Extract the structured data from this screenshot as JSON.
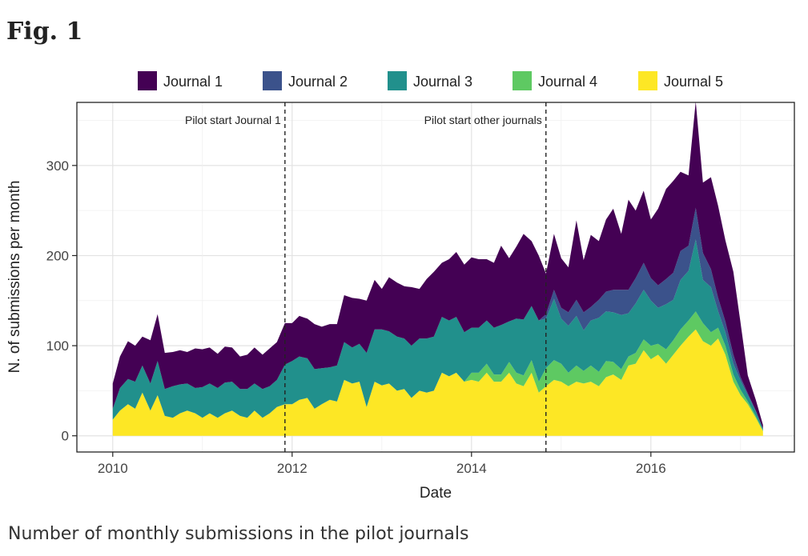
{
  "figure": {
    "label": "Fig. 1",
    "caption": "Number of monthly submissions in the pilot journals"
  },
  "chart_data": {
    "type": "area",
    "stacked": true,
    "title": "",
    "xlabel": "Date",
    "ylabel": "N. of submissions per month",
    "xlim": [
      2009.6,
      2017.6
    ],
    "ylim": [
      -18,
      370
    ],
    "xticks": [
      2010,
      2012,
      2014,
      2016
    ],
    "xtick_labels": [
      "2010",
      "2012",
      "2014",
      "2016"
    ],
    "yticks": [
      0,
      100,
      200,
      300
    ],
    "ytick_labels": [
      "0",
      "100",
      "200",
      "300"
    ],
    "grid": true,
    "legend_position": "top",
    "annotations": [
      {
        "x": 2011.92,
        "label": "Pilot start Journal 1"
      },
      {
        "x": 2014.83,
        "label": "Pilot start other journals"
      }
    ],
    "x": [
      2010.0,
      2010.08,
      2010.17,
      2010.25,
      2010.33,
      2010.42,
      2010.5,
      2010.58,
      2010.67,
      2010.75,
      2010.83,
      2010.92,
      2011.0,
      2011.08,
      2011.17,
      2011.25,
      2011.33,
      2011.42,
      2011.5,
      2011.58,
      2011.67,
      2011.75,
      2011.83,
      2011.92,
      2012.0,
      2012.08,
      2012.17,
      2012.25,
      2012.33,
      2012.42,
      2012.5,
      2012.58,
      2012.67,
      2012.75,
      2012.83,
      2012.92,
      2013.0,
      2013.08,
      2013.17,
      2013.25,
      2013.33,
      2013.42,
      2013.5,
      2013.58,
      2013.67,
      2013.75,
      2013.83,
      2013.92,
      2014.0,
      2014.08,
      2014.17,
      2014.25,
      2014.33,
      2014.42,
      2014.5,
      2014.58,
      2014.67,
      2014.75,
      2014.83,
      2014.92,
      2015.0,
      2015.08,
      2015.17,
      2015.25,
      2015.33,
      2015.42,
      2015.5,
      2015.58,
      2015.67,
      2015.75,
      2015.83,
      2015.92,
      2016.0,
      2016.08,
      2016.17,
      2016.25,
      2016.33,
      2016.42,
      2016.5,
      2016.58,
      2016.67,
      2016.75,
      2016.83,
      2016.92,
      2017.0,
      2017.08,
      2017.17,
      2017.25
    ],
    "series": [
      {
        "name": "Journal 1",
        "color": "#440154",
        "values": [
          28,
          35,
          42,
          40,
          32,
          48,
          52,
          40,
          38,
          38,
          35,
          44,
          42,
          40,
          38,
          40,
          38,
          36,
          38,
          40,
          38,
          42,
          42,
          46,
          42,
          45,
          44,
          50,
          46,
          48,
          46,
          52,
          55,
          50,
          58,
          55,
          45,
          60,
          60,
          58,
          65,
          55,
          66,
          72,
          60,
          68,
          72,
          75,
          78,
          76,
          68,
          72,
          88,
          70,
          80,
          95,
          72,
          72,
          45,
          62,
          55,
          50,
          88,
          58,
          80,
          65,
          80,
          90,
          62,
          100,
          75,
          80,
          65,
          85,
          100,
          102,
          88,
          78,
          118,
          78,
          102,
          102,
          90,
          92,
          60,
          20,
          12,
          4
        ]
      },
      {
        "name": "Journal 2",
        "color": "#3b528b",
        "values": [
          0,
          0,
          0,
          0,
          0,
          0,
          0,
          0,
          0,
          0,
          0,
          0,
          0,
          0,
          0,
          0,
          0,
          0,
          0,
          0,
          0,
          0,
          0,
          0,
          0,
          0,
          0,
          0,
          0,
          0,
          0,
          0,
          0,
          0,
          0,
          0,
          0,
          0,
          0,
          0,
          0,
          0,
          0,
          0,
          0,
          0,
          0,
          0,
          0,
          0,
          0,
          0,
          0,
          0,
          0,
          0,
          0,
          0,
          5,
          10,
          12,
          15,
          18,
          20,
          15,
          20,
          22,
          25,
          28,
          26,
          28,
          30,
          25,
          25,
          28,
          30,
          32,
          28,
          35,
          30,
          20,
          15,
          12,
          10,
          4,
          2,
          1,
          0
        ]
      },
      {
        "name": "Journal 3",
        "color": "#21908c",
        "values": [
          12,
          25,
          28,
          30,
          30,
          30,
          38,
          30,
          35,
          32,
          30,
          28,
          34,
          33,
          33,
          34,
          32,
          30,
          32,
          30,
          32,
          30,
          30,
          44,
          48,
          48,
          44,
          44,
          40,
          36,
          40,
          42,
          40,
          42,
          60,
          58,
          62,
          58,
          60,
          56,
          58,
          58,
          60,
          60,
          62,
          62,
          62,
          55,
          50,
          50,
          48,
          52,
          55,
          45,
          60,
          62,
          60,
          68,
          55,
          68,
          50,
          52,
          55,
          45,
          50,
          60,
          55,
          55,
          60,
          48,
          55,
          55,
          50,
          40,
          50,
          45,
          55,
          55,
          80,
          48,
          50,
          18,
          15,
          12,
          10,
          7,
          5,
          2
        ]
      },
      {
        "name": "Journal 4",
        "color": "#5ec962",
        "values": [
          0,
          0,
          0,
          0,
          0,
          0,
          0,
          0,
          0,
          0,
          0,
          0,
          0,
          0,
          0,
          0,
          0,
          0,
          0,
          0,
          0,
          0,
          0,
          0,
          0,
          0,
          0,
          0,
          0,
          0,
          0,
          0,
          0,
          0,
          0,
          0,
          0,
          0,
          0,
          0,
          0,
          0,
          0,
          0,
          0,
          0,
          0,
          0,
          8,
          10,
          10,
          8,
          8,
          12,
          12,
          12,
          14,
          12,
          20,
          22,
          20,
          15,
          18,
          14,
          18,
          16,
          18,
          14,
          12,
          10,
          12,
          12,
          15,
          12,
          16,
          16,
          18,
          18,
          20,
          20,
          15,
          12,
          10,
          8,
          6,
          3,
          2,
          1
        ]
      },
      {
        "name": "Journal 5",
        "color": "#fde725",
        "values": [
          18,
          28,
          35,
          30,
          48,
          28,
          45,
          22,
          20,
          25,
          28,
          25,
          20,
          25,
          20,
          25,
          28,
          22,
          20,
          28,
          20,
          25,
          32,
          35,
          35,
          40,
          42,
          30,
          35,
          40,
          38,
          62,
          58,
          60,
          32,
          60,
          56,
          58,
          50,
          52,
          42,
          50,
          48,
          50,
          70,
          66,
          70,
          60,
          62,
          60,
          70,
          60,
          60,
          70,
          58,
          55,
          70,
          48,
          55,
          62,
          60,
          55,
          60,
          58,
          60,
          55,
          65,
          68,
          62,
          78,
          80,
          95,
          85,
          90,
          80,
          90,
          100,
          110,
          118,
          105,
          100,
          108,
          90,
          60,
          45,
          35,
          20,
          5
        ]
      }
    ]
  }
}
